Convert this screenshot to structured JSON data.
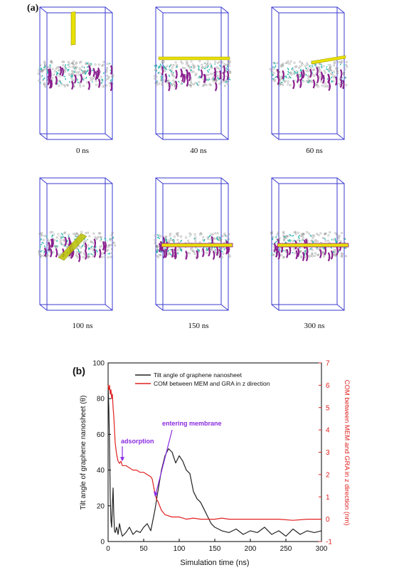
{
  "panel_a_label": "(a)",
  "panel_b_label": "(b)",
  "snapshots": [
    {
      "label": "0 ns",
      "state": "above"
    },
    {
      "label": "40 ns",
      "state": "adsorbed"
    },
    {
      "label": "60 ns",
      "state": "tilted-surface"
    },
    {
      "label": "100 ns",
      "state": "inserting"
    },
    {
      "label": "150 ns",
      "state": "embedded"
    },
    {
      "label": "300 ns",
      "state": "embedded"
    }
  ],
  "colors": {
    "box": "#3a3ad0",
    "lipid_tail": "#8a8a8a",
    "lipid_head": "#2fb8b0",
    "lipid_chain": "#8a1f8f",
    "graphene": "#e8e000",
    "series_tilt": "#222222",
    "series_com": "#e02020",
    "annotation": "#8a2be2"
  },
  "chart_data": {
    "type": "line",
    "xlabel": "Simulation time (ns)",
    "ylabel": "Tilt angle of graphene nanosheet (θ)",
    "y2label": "COM between MEM and GRA in z direction (nm)",
    "xlim": [
      0,
      300
    ],
    "ylim": [
      0,
      100
    ],
    "y2lim": [
      -1,
      7
    ],
    "xticks": [
      0,
      50,
      100,
      150,
      200,
      250,
      300
    ],
    "yticks": [
      0,
      20,
      40,
      60,
      80,
      100
    ],
    "y2ticks": [
      -1,
      0,
      1,
      2,
      3,
      4,
      5,
      6,
      7
    ],
    "legend_position": "top",
    "series": [
      {
        "name": "Tilt angle of graphene nanosheet",
        "axis": "left",
        "x": [
          0,
          1,
          2,
          3,
          4,
          5,
          6,
          7,
          8,
          9,
          10,
          12,
          14,
          16,
          18,
          20,
          25,
          30,
          35,
          40,
          45,
          50,
          55,
          60,
          63,
          66,
          70,
          75,
          80,
          85,
          90,
          95,
          100,
          105,
          110,
          115,
          120,
          125,
          130,
          135,
          140,
          145,
          150,
          160,
          170,
          180,
          190,
          200,
          210,
          220,
          230,
          240,
          250,
          260,
          270,
          280,
          290,
          300
        ],
        "y": [
          88,
          75,
          55,
          25,
          12,
          8,
          20,
          30,
          15,
          6,
          5,
          8,
          4,
          10,
          6,
          3,
          5,
          8,
          4,
          6,
          5,
          8,
          10,
          6,
          12,
          18,
          28,
          40,
          48,
          52,
          50,
          44,
          48,
          45,
          40,
          38,
          28,
          24,
          22,
          18,
          14,
          10,
          8,
          6,
          5,
          7,
          4,
          6,
          5,
          8,
          4,
          6,
          3,
          7,
          4,
          6,
          5,
          6
        ]
      },
      {
        "name": "COM between MEM and GRA in z direction",
        "axis": "right",
        "x": [
          0,
          1,
          2,
          3,
          4,
          5,
          6,
          7,
          8,
          10,
          12,
          14,
          16,
          18,
          20,
          25,
          30,
          35,
          40,
          45,
          50,
          55,
          60,
          62,
          65,
          68,
          70,
          75,
          80,
          90,
          100,
          110,
          120,
          130,
          140,
          150,
          160,
          170,
          180,
          190,
          200,
          220,
          240,
          260,
          280,
          300
        ],
        "y": [
          6.0,
          5.8,
          6.0,
          5.6,
          5.8,
          5.4,
          5.6,
          5.0,
          4.6,
          3.4,
          2.9,
          2.6,
          2.5,
          2.6,
          2.4,
          2.4,
          2.3,
          2.2,
          2.2,
          2.1,
          2.1,
          2.0,
          1.9,
          1.8,
          1.3,
          0.9,
          0.8,
          0.4,
          0.2,
          0.1,
          0.1,
          0.0,
          0.05,
          0.0,
          0.0,
          0.0,
          0.05,
          0.0,
          0.0,
          0.0,
          0.0,
          0.0,
          0.0,
          -0.05,
          0.0,
          0.0
        ]
      }
    ],
    "annotations": [
      {
        "text": "adsorption",
        "x": 20,
        "y2": 2.5,
        "color": "annotation"
      },
      {
        "text": "entering membrane",
        "x": 66,
        "y2": 1.0,
        "color": "annotation"
      }
    ]
  }
}
